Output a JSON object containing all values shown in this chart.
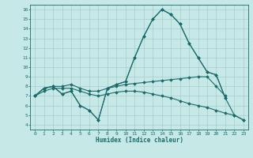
{
  "xlabel": "Humidex (Indice chaleur)",
  "bg_color": "#c6e8e6",
  "line_color": "#1a6b6b",
  "grid_color": "#a8cece",
  "xlim": [
    -0.5,
    23.5
  ],
  "ylim": [
    3.5,
    16.5
  ],
  "xticks": [
    0,
    1,
    2,
    3,
    4,
    5,
    6,
    7,
    8,
    9,
    10,
    11,
    12,
    13,
    14,
    15,
    16,
    17,
    18,
    19,
    20,
    21,
    22,
    23
  ],
  "yticks": [
    4,
    5,
    6,
    7,
    8,
    9,
    10,
    11,
    12,
    13,
    14,
    15,
    16
  ],
  "line1_x": [
    0,
    1,
    2,
    3,
    4,
    5,
    6,
    7,
    8,
    9,
    10,
    11,
    12,
    13,
    14,
    15,
    16,
    17,
    18,
    19,
    20,
    21
  ],
  "line1_y": [
    7.0,
    7.8,
    8.0,
    7.2,
    7.5,
    6.0,
    5.5,
    4.5,
    7.8,
    8.2,
    8.5,
    11.0,
    13.2,
    15.0,
    16.0,
    15.5,
    14.5,
    12.5,
    11.0,
    9.5,
    9.2,
    6.8
  ],
  "line2_x": [
    0,
    1,
    2,
    3,
    4,
    5,
    6,
    7,
    8,
    9,
    10,
    11,
    12,
    13,
    14,
    15,
    16,
    17,
    18,
    19,
    20,
    21,
    22,
    23
  ],
  "line2_y": [
    7.0,
    7.8,
    8.0,
    7.2,
    7.5,
    6.0,
    5.5,
    4.5,
    7.8,
    8.2,
    8.5,
    11.0,
    13.2,
    15.0,
    16.0,
    15.5,
    14.5,
    12.5,
    11.0,
    9.5,
    9.2,
    6.8,
    5.0,
    4.5
  ],
  "line3_x": [
    0,
    1,
    2,
    3,
    4,
    5,
    6,
    7,
    8,
    9,
    10,
    11,
    12,
    13,
    14,
    15,
    16,
    17,
    18,
    19,
    20,
    21
  ],
  "line3_y": [
    7.0,
    7.8,
    8.0,
    8.0,
    8.2,
    7.8,
    7.5,
    7.5,
    7.8,
    8.0,
    8.2,
    8.3,
    8.4,
    8.5,
    8.6,
    8.7,
    8.8,
    8.9,
    9.0,
    9.0,
    8.0,
    7.0
  ],
  "line4_x": [
    0,
    1,
    2,
    3,
    4,
    5,
    6,
    7,
    8,
    9,
    10,
    11,
    12,
    13,
    14,
    15,
    16,
    17,
    18,
    19,
    20,
    21,
    22,
    23
  ],
  "line4_y": [
    7.0,
    7.5,
    7.8,
    7.8,
    7.8,
    7.5,
    7.2,
    7.0,
    7.2,
    7.4,
    7.5,
    7.5,
    7.4,
    7.2,
    7.0,
    6.8,
    6.5,
    6.2,
    6.0,
    5.8,
    5.5,
    5.2,
    5.0,
    4.5
  ]
}
